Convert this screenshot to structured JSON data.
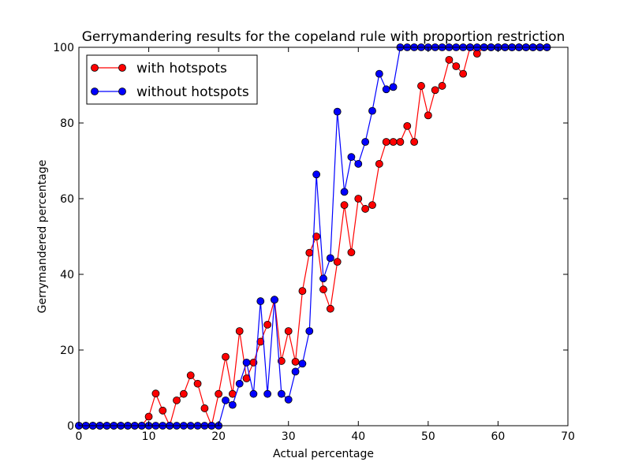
{
  "chart_data": {
    "type": "line",
    "title": "Gerrymandering results for the copeland rule with proportion restriction",
    "xlabel": "Actual percentage",
    "ylabel": "Gerrymandered percentage",
    "xlim": [
      0,
      70
    ],
    "ylim": [
      0,
      100
    ],
    "xticks": [
      0,
      10,
      20,
      30,
      40,
      50,
      60,
      70
    ],
    "yticks": [
      0,
      20,
      40,
      60,
      80,
      100
    ],
    "x": [
      0,
      1,
      2,
      3,
      4,
      5,
      6,
      7,
      8,
      9,
      10,
      11,
      12,
      13,
      14,
      15,
      16,
      17,
      18,
      19,
      20,
      21,
      22,
      23,
      24,
      25,
      26,
      27,
      28,
      29,
      30,
      31,
      32,
      33,
      34,
      35,
      36,
      37,
      38,
      39,
      40,
      41,
      42,
      43,
      44,
      45,
      46,
      47,
      48,
      49,
      50,
      51,
      52,
      53,
      54,
      55,
      56,
      57,
      58,
      59,
      60,
      61,
      62,
      63,
      64,
      65,
      66,
      67
    ],
    "legend_position": "top-left",
    "series": [
      {
        "name": "with hotspots",
        "color": "#ff0000",
        "values": [
          0,
          0,
          0,
          0,
          0,
          0,
          0,
          0,
          0,
          0,
          2.4,
          8.5,
          4,
          0,
          6.7,
          8.4,
          13.3,
          11.1,
          4.6,
          0,
          8.4,
          18.2,
          8.4,
          25,
          12.5,
          16.7,
          22.2,
          26.7,
          33.3,
          17.1,
          25,
          16.9,
          35.6,
          45.7,
          50,
          36,
          30.9,
          43.3,
          58.3,
          45.8,
          60,
          57.3,
          58.3,
          69.2,
          75,
          75,
          75,
          79.2,
          75,
          89.8,
          82,
          88.7,
          89.8,
          96.7,
          95,
          93,
          100,
          98.3,
          100,
          100,
          100,
          100,
          100,
          100,
          100,
          100,
          100,
          100
        ]
      },
      {
        "name": "without hotspots",
        "color": "#0000ff",
        "values": [
          0,
          0,
          0,
          0,
          0,
          0,
          0,
          0,
          0,
          0,
          0,
          0,
          0,
          0,
          0,
          0,
          0,
          0,
          0,
          0,
          0,
          6.7,
          5.5,
          11.1,
          16.7,
          8.4,
          32.9,
          8.4,
          33.3,
          8.4,
          6.9,
          14.3,
          16.4,
          25,
          66.4,
          38.9,
          44.3,
          83,
          61.8,
          71,
          69.2,
          75,
          83.2,
          93,
          88.9,
          89.5,
          100,
          100,
          100,
          100,
          100,
          100,
          100,
          100,
          100,
          100,
          100,
          100,
          100,
          100,
          100,
          100,
          100,
          100,
          100,
          100,
          100,
          100
        ]
      }
    ]
  }
}
